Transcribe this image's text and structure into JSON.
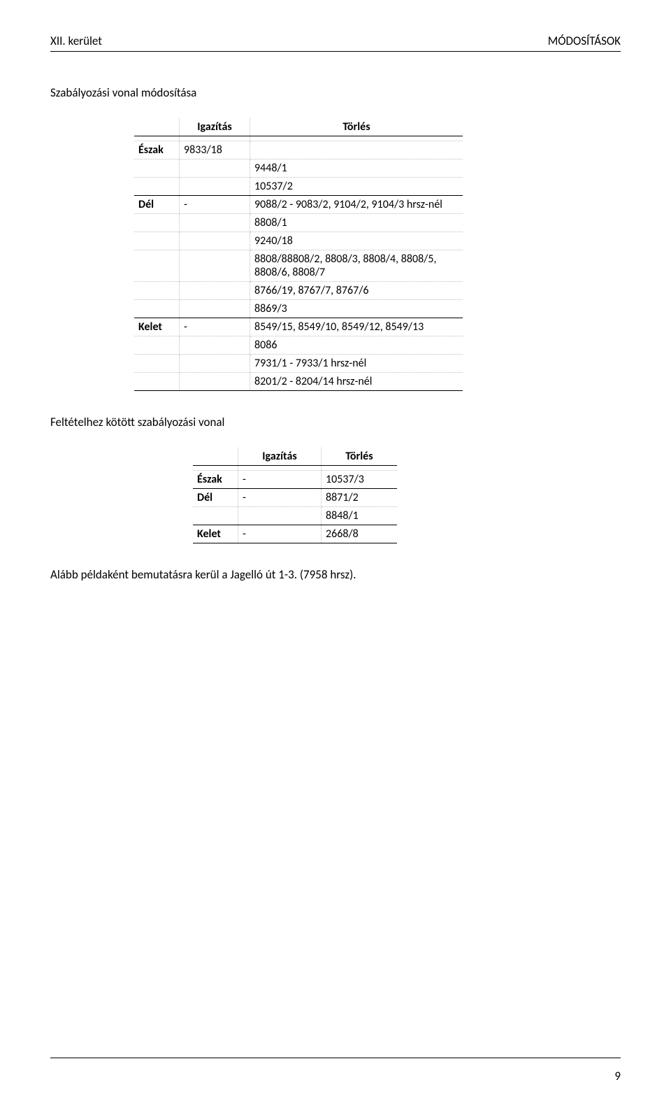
{
  "header": {
    "left": "XII. kerület",
    "right": "MÓDOSÍTÁSOK"
  },
  "section1": {
    "title": "Szabályozási vonal módosítása"
  },
  "table1": {
    "head": {
      "col1": "Igazítás",
      "col2": "Törlés"
    },
    "rows": [
      {
        "label": "Észak",
        "col1": "9833/18",
        "col2": ""
      },
      {
        "label": "",
        "col1": "",
        "col2": "9448/1"
      },
      {
        "label": "",
        "col1": "",
        "col2": "10537/2"
      },
      {
        "label": "Dél",
        "col1": "-",
        "col2": "9088/2 - 9083/2, 9104/2, 9104/3 hrsz-nél"
      },
      {
        "label": "",
        "col1": "",
        "col2": "8808/1"
      },
      {
        "label": "",
        "col1": "",
        "col2": "9240/18"
      },
      {
        "label": "",
        "col1": "",
        "col2": "8808/88808/2, 8808/3, 8808/4, 8808/5, 8808/6, 8808/7"
      },
      {
        "label": "",
        "col1": "",
        "col2": "8766/19, 8767/7, 8767/6"
      },
      {
        "label": "",
        "col1": "",
        "col2": "8869/3"
      },
      {
        "label": "Kelet",
        "col1": "-",
        "col2": "8549/15, 8549/10, 8549/12, 8549/13"
      },
      {
        "label": "",
        "col1": "",
        "col2": "8086"
      },
      {
        "label": "",
        "col1": "",
        "col2": "7931/1 - 7933/1 hrsz-nél"
      },
      {
        "label": "",
        "col1": "",
        "col2": "8201/2 - 8204/14 hrsz-nél"
      }
    ]
  },
  "section2": {
    "title": "Feltételhez kötött szabályozási vonal"
  },
  "table2": {
    "head": {
      "col1": "Igazítás",
      "col2": "Törlés"
    },
    "rows": [
      {
        "label": "Észak",
        "col1": "-",
        "col2": "10537/3"
      },
      {
        "label": "Dél",
        "col1": "-",
        "col2": "8871/2"
      },
      {
        "label": "",
        "col1": "",
        "col2": "8848/1"
      },
      {
        "label": "Kelet",
        "col1": "-",
        "col2": "2668/8"
      }
    ]
  },
  "footerText": "Alább példaként bemutatásra kerül a Jagelló út 1-3. (7958 hrsz).",
  "pageNumber": "9"
}
